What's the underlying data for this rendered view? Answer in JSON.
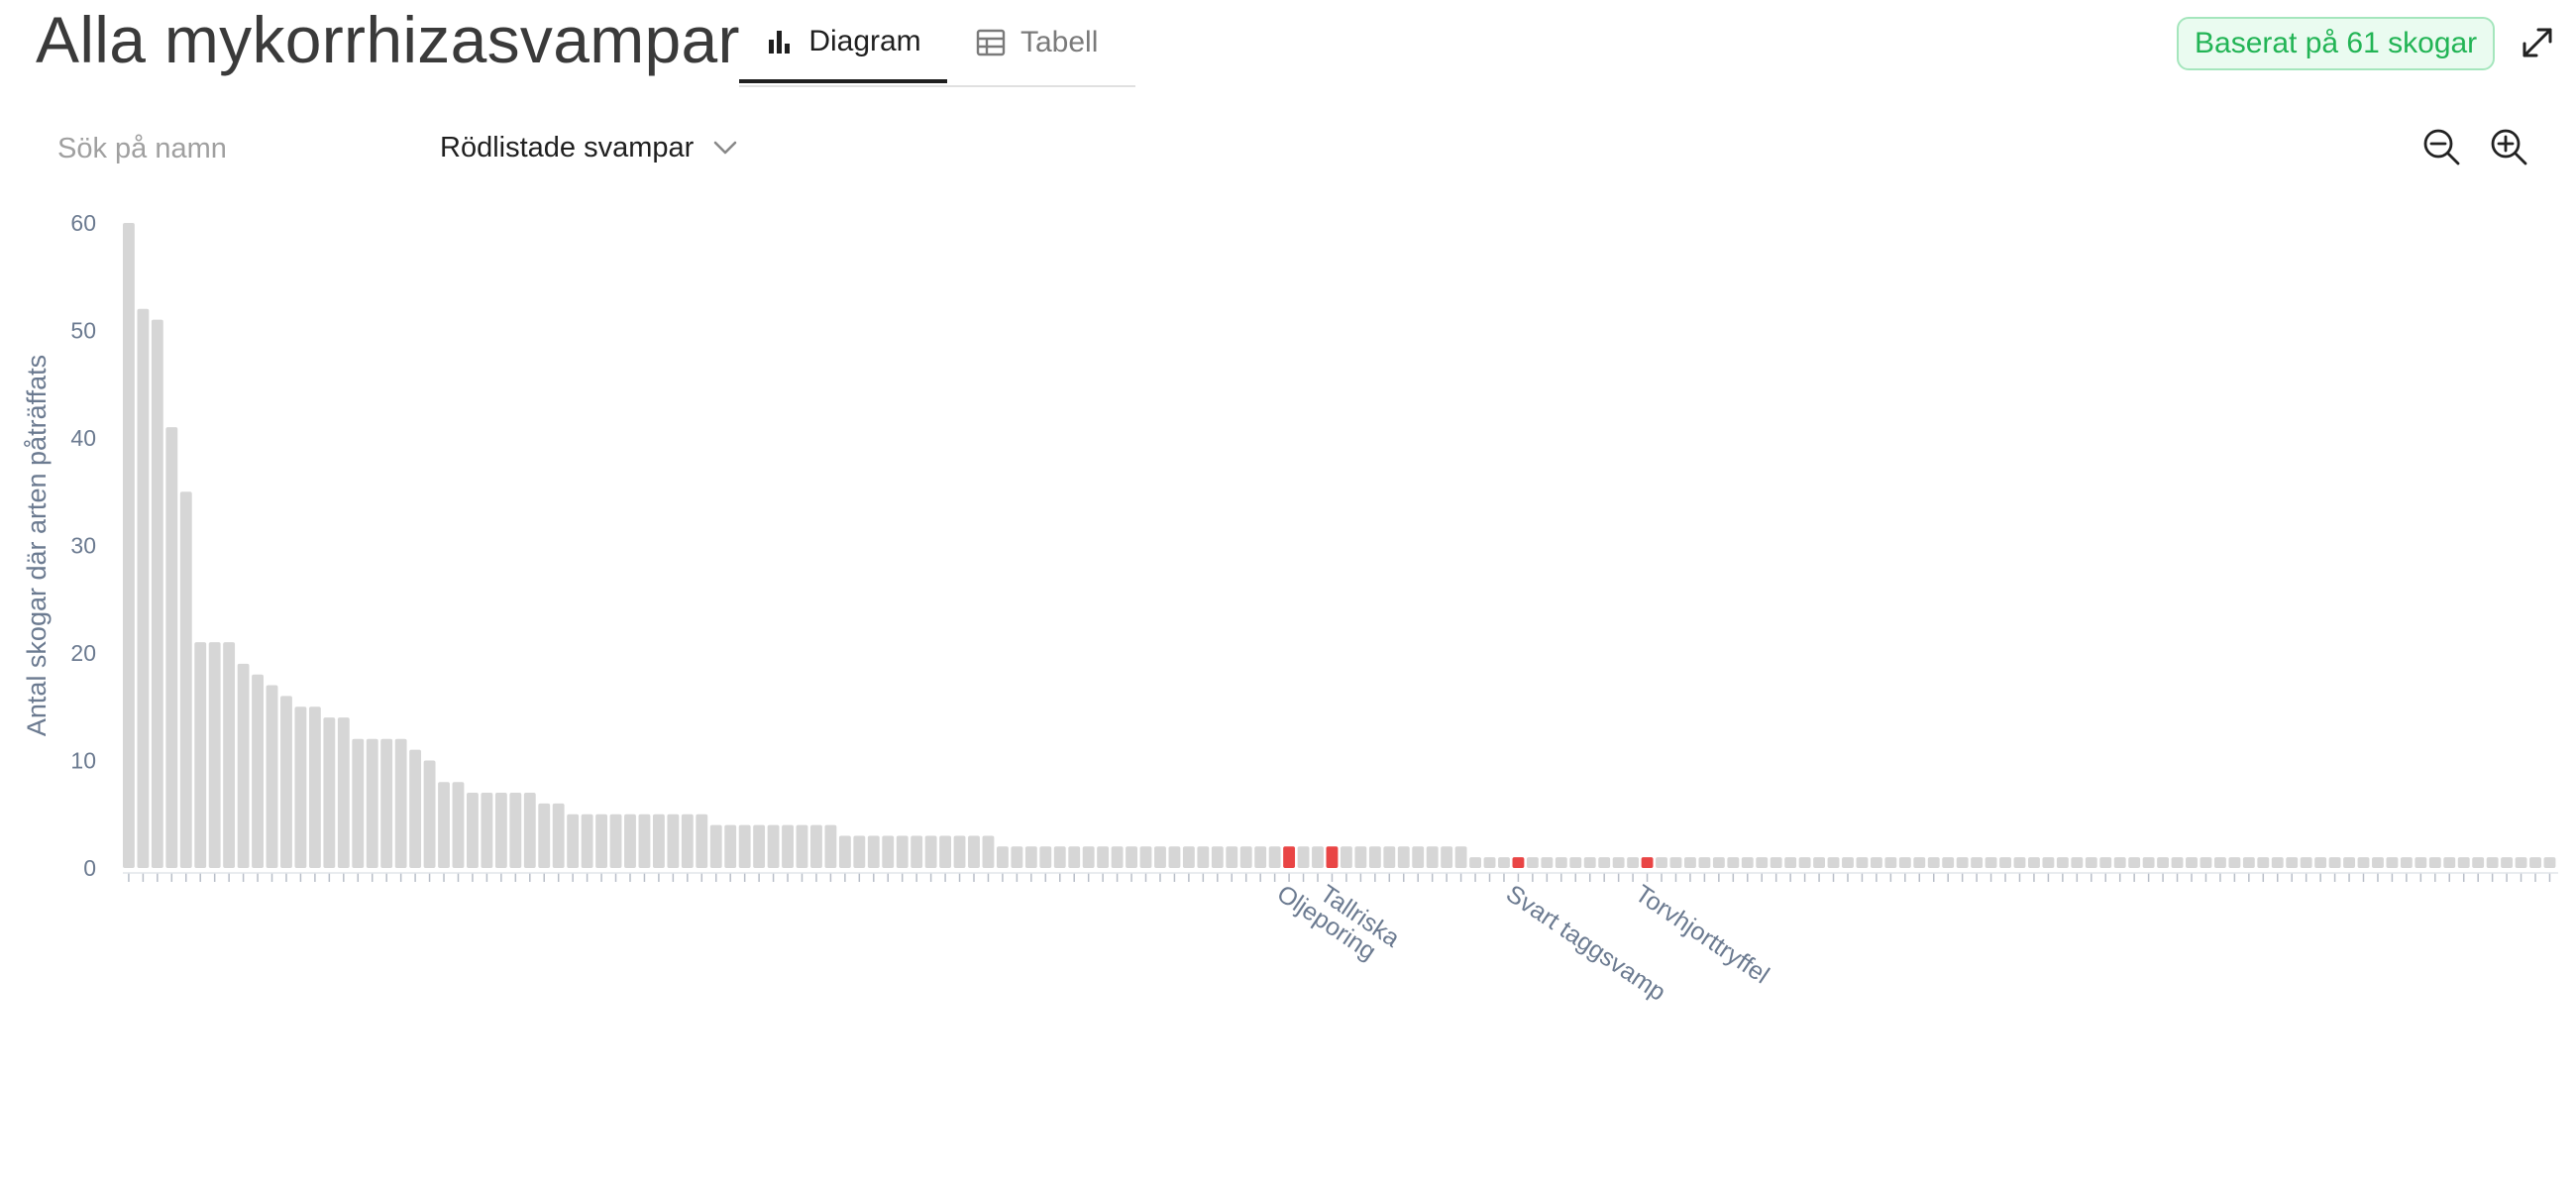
{
  "header": {
    "title": "Alla mykorrhizasvampar",
    "tabs": [
      {
        "label": "Diagram",
        "icon": "bar-chart-icon",
        "active": true
      },
      {
        "label": "Tabell",
        "icon": "table-icon",
        "active": false
      }
    ],
    "badge": "Baserat på 61 skogar"
  },
  "controls": {
    "search_placeholder": "Sök på namn",
    "filter_label": "Rödlistade svampar"
  },
  "colors": {
    "bar": "#d6d6d6",
    "highlight": "#e94545",
    "axis_text": "#6b7a90",
    "badge_text": "#22b455"
  },
  "chart_data": {
    "type": "bar",
    "title": "",
    "xlabel": "",
    "ylabel": "Antal skogar där arten påträffats",
    "ylim": [
      0,
      60
    ],
    "yticks": [
      0,
      10,
      20,
      30,
      40,
      50,
      60
    ],
    "values": [
      60,
      52,
      51,
      41,
      35,
      21,
      21,
      21,
      19,
      18,
      17,
      16,
      15,
      15,
      14,
      14,
      12,
      12,
      12,
      12,
      11,
      10,
      8,
      8,
      7,
      7,
      7,
      7,
      7,
      6,
      6,
      5,
      5,
      5,
      5,
      5,
      5,
      5,
      5,
      5,
      5,
      4,
      4,
      4,
      4,
      4,
      4,
      4,
      4,
      4,
      3,
      3,
      3,
      3,
      3,
      3,
      3,
      3,
      3,
      3,
      3,
      2,
      2,
      2,
      2,
      2,
      2,
      2,
      2,
      2,
      2,
      2,
      2,
      2,
      2,
      2,
      2,
      2,
      2,
      2,
      2,
      2,
      2,
      2,
      2,
      2,
      2,
      2,
      2,
      2,
      2,
      2,
      2,
      2,
      1,
      1,
      1,
      1,
      1,
      1,
      1,
      1,
      1,
      1,
      1,
      1,
      1,
      1,
      1,
      1,
      1,
      1,
      1,
      1,
      1,
      1,
      1,
      1,
      1,
      1,
      1,
      1,
      1,
      1,
      1,
      1,
      1,
      1,
      1,
      1,
      1,
      1,
      1,
      1,
      1,
      1,
      1,
      1,
      1,
      1,
      1,
      1,
      1,
      1,
      1,
      1,
      1,
      1,
      1,
      1,
      1,
      1,
      1,
      1,
      1,
      1,
      1,
      1,
      1,
      1,
      1,
      1,
      1,
      1,
      1,
      1,
      1,
      1,
      1,
      1
    ],
    "highlighted": [
      {
        "index": 81,
        "label": "Oljeporing"
      },
      {
        "index": 84,
        "label": "Tallriska"
      },
      {
        "index": 97,
        "label": "Svart taggsvamp"
      },
      {
        "index": 106,
        "label": "Torvhjorttryffel"
      }
    ]
  }
}
